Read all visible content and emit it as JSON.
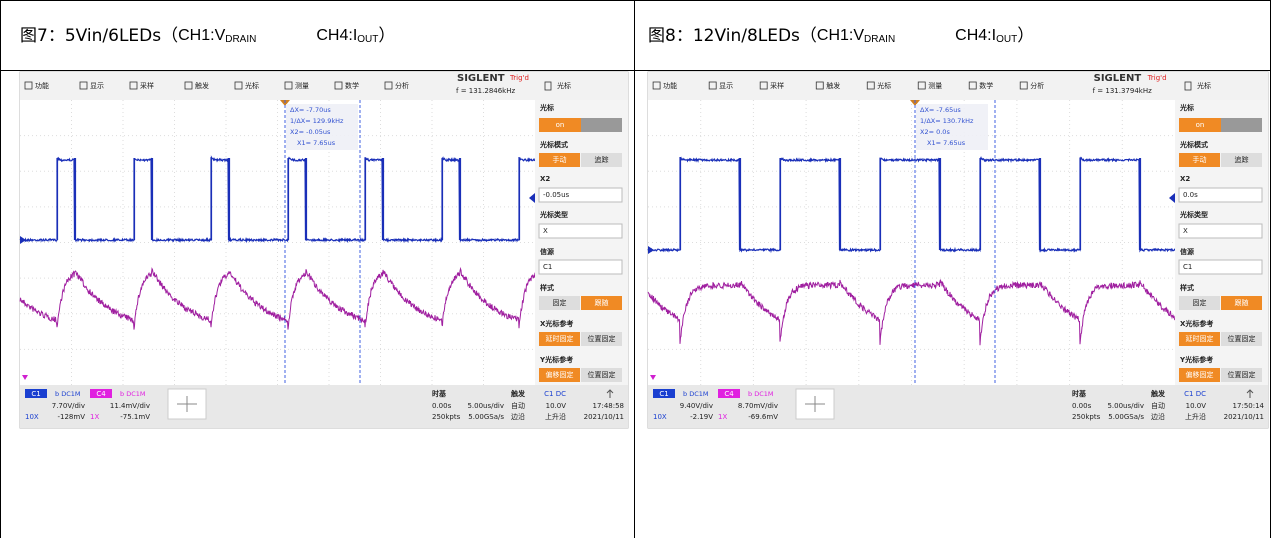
{
  "figures": [
    {
      "caption": {
        "prefix": "图7：",
        "main": "5Vin/6LEDs（",
        "ch1": "CH1:V",
        "ch1_sub": "DRAIN",
        "ch4": "CH4:I",
        "ch4_sub": "OUT",
        "end": "）"
      },
      "scope": {
        "menu": [
          "功能",
          "显示",
          "采样",
          "触发",
          "光标",
          "测量",
          "数学",
          "分析"
        ],
        "brand": "SIGLENT",
        "status": "Trig'd",
        "freq": "f = 131.2846kHz",
        "panel_menu": "光标",
        "cursor_readout": [
          "ΔX= -7.70us",
          "1/ΔX= 129.9kHz",
          "X2= -0.05us",
          "X1= 7.65us"
        ],
        "panel": {
          "title": "光标",
          "state": "on",
          "mode_label": "光标模式",
          "mode_options": [
            "手动",
            "追踪"
          ],
          "x2_label": "X2",
          "x2_value": "-0.05us",
          "type_label": "光标类型",
          "type_value": "X",
          "source_label": "信源",
          "source_value": "C1",
          "style_label": "样式",
          "style_options": [
            "固定",
            "跟随"
          ],
          "xref_label": "X光标参考",
          "xref_options": [
            "延时固定",
            "位置固定"
          ],
          "yref_label": "Y光标参考",
          "yref_options": [
            "偏移固定",
            "位置固定"
          ]
        },
        "channels": [
          {
            "name": "C1",
            "coupling": "b DC1M",
            "scale": "7.70V/div",
            "probe": "10X",
            "offset": "-128mV"
          },
          {
            "name": "C4",
            "coupling": "b DC1M",
            "scale": "11.4mV/div",
            "probe": "1X",
            "offset": "-75.1mV"
          }
        ],
        "timebase": {
          "label": "时基",
          "delay": "0.00s",
          "scale": "5.00us/div",
          "depth": "250kpts",
          "rate": "5.00GSa/s"
        },
        "trigger": {
          "label": "触发",
          "source": "C1 DC",
          "mode": "自动",
          "level": "10.0V",
          "type": "边沿",
          "slope": "上升沿"
        },
        "time": "17:48:58",
        "date": "2021/10/11"
      }
    },
    {
      "caption": {
        "prefix": "图8：",
        "main": "12Vin/8LEDs（",
        "ch1": "CH1:V",
        "ch1_sub": "DRAIN",
        "ch4": "CH4:I",
        "ch4_sub": "OUT",
        "end": "）"
      },
      "scope": {
        "menu": [
          "功能",
          "显示",
          "采样",
          "触发",
          "光标",
          "测量",
          "数学",
          "分析"
        ],
        "brand": "SIGLENT",
        "status": "Trig'd",
        "freq": "f = 131.3794kHz",
        "panel_menu": "光标",
        "cursor_readout": [
          "ΔX= -7.65us",
          "1/ΔX= 130.7kHz",
          "X2= 0.0s",
          "X1= 7.65us"
        ],
        "panel": {
          "title": "光标",
          "state": "on",
          "mode_label": "光标模式",
          "mode_options": [
            "手动",
            "追踪"
          ],
          "x2_label": "X2",
          "x2_value": "0.0s",
          "type_label": "光标类型",
          "type_value": "X",
          "source_label": "信源",
          "source_value": "C1",
          "style_label": "样式",
          "style_options": [
            "固定",
            "跟随"
          ],
          "xref_label": "X光标参考",
          "xref_options": [
            "延时固定",
            "位置固定"
          ],
          "yref_label": "Y光标参考",
          "yref_options": [
            "偏移固定",
            "位置固定"
          ]
        },
        "channels": [
          {
            "name": "C1",
            "coupling": "b DC1M",
            "scale": "9.40V/div",
            "probe": "10X",
            "offset": "-2.19V"
          },
          {
            "name": "C4",
            "coupling": "b DC1M",
            "scale": "8.70mV/div",
            "probe": "1X",
            "offset": "-69.6mV"
          }
        ],
        "timebase": {
          "label": "时基",
          "delay": "0.00s",
          "scale": "5.00us/div",
          "depth": "250kpts",
          "rate": "5.00GSa/s"
        },
        "trigger": {
          "label": "触发",
          "source": "C1 DC",
          "mode": "自动",
          "level": "10.0V",
          "type": "边沿",
          "slope": "上升沿"
        },
        "time": "17:50:14",
        "date": "2021/10/11"
      }
    }
  ]
}
